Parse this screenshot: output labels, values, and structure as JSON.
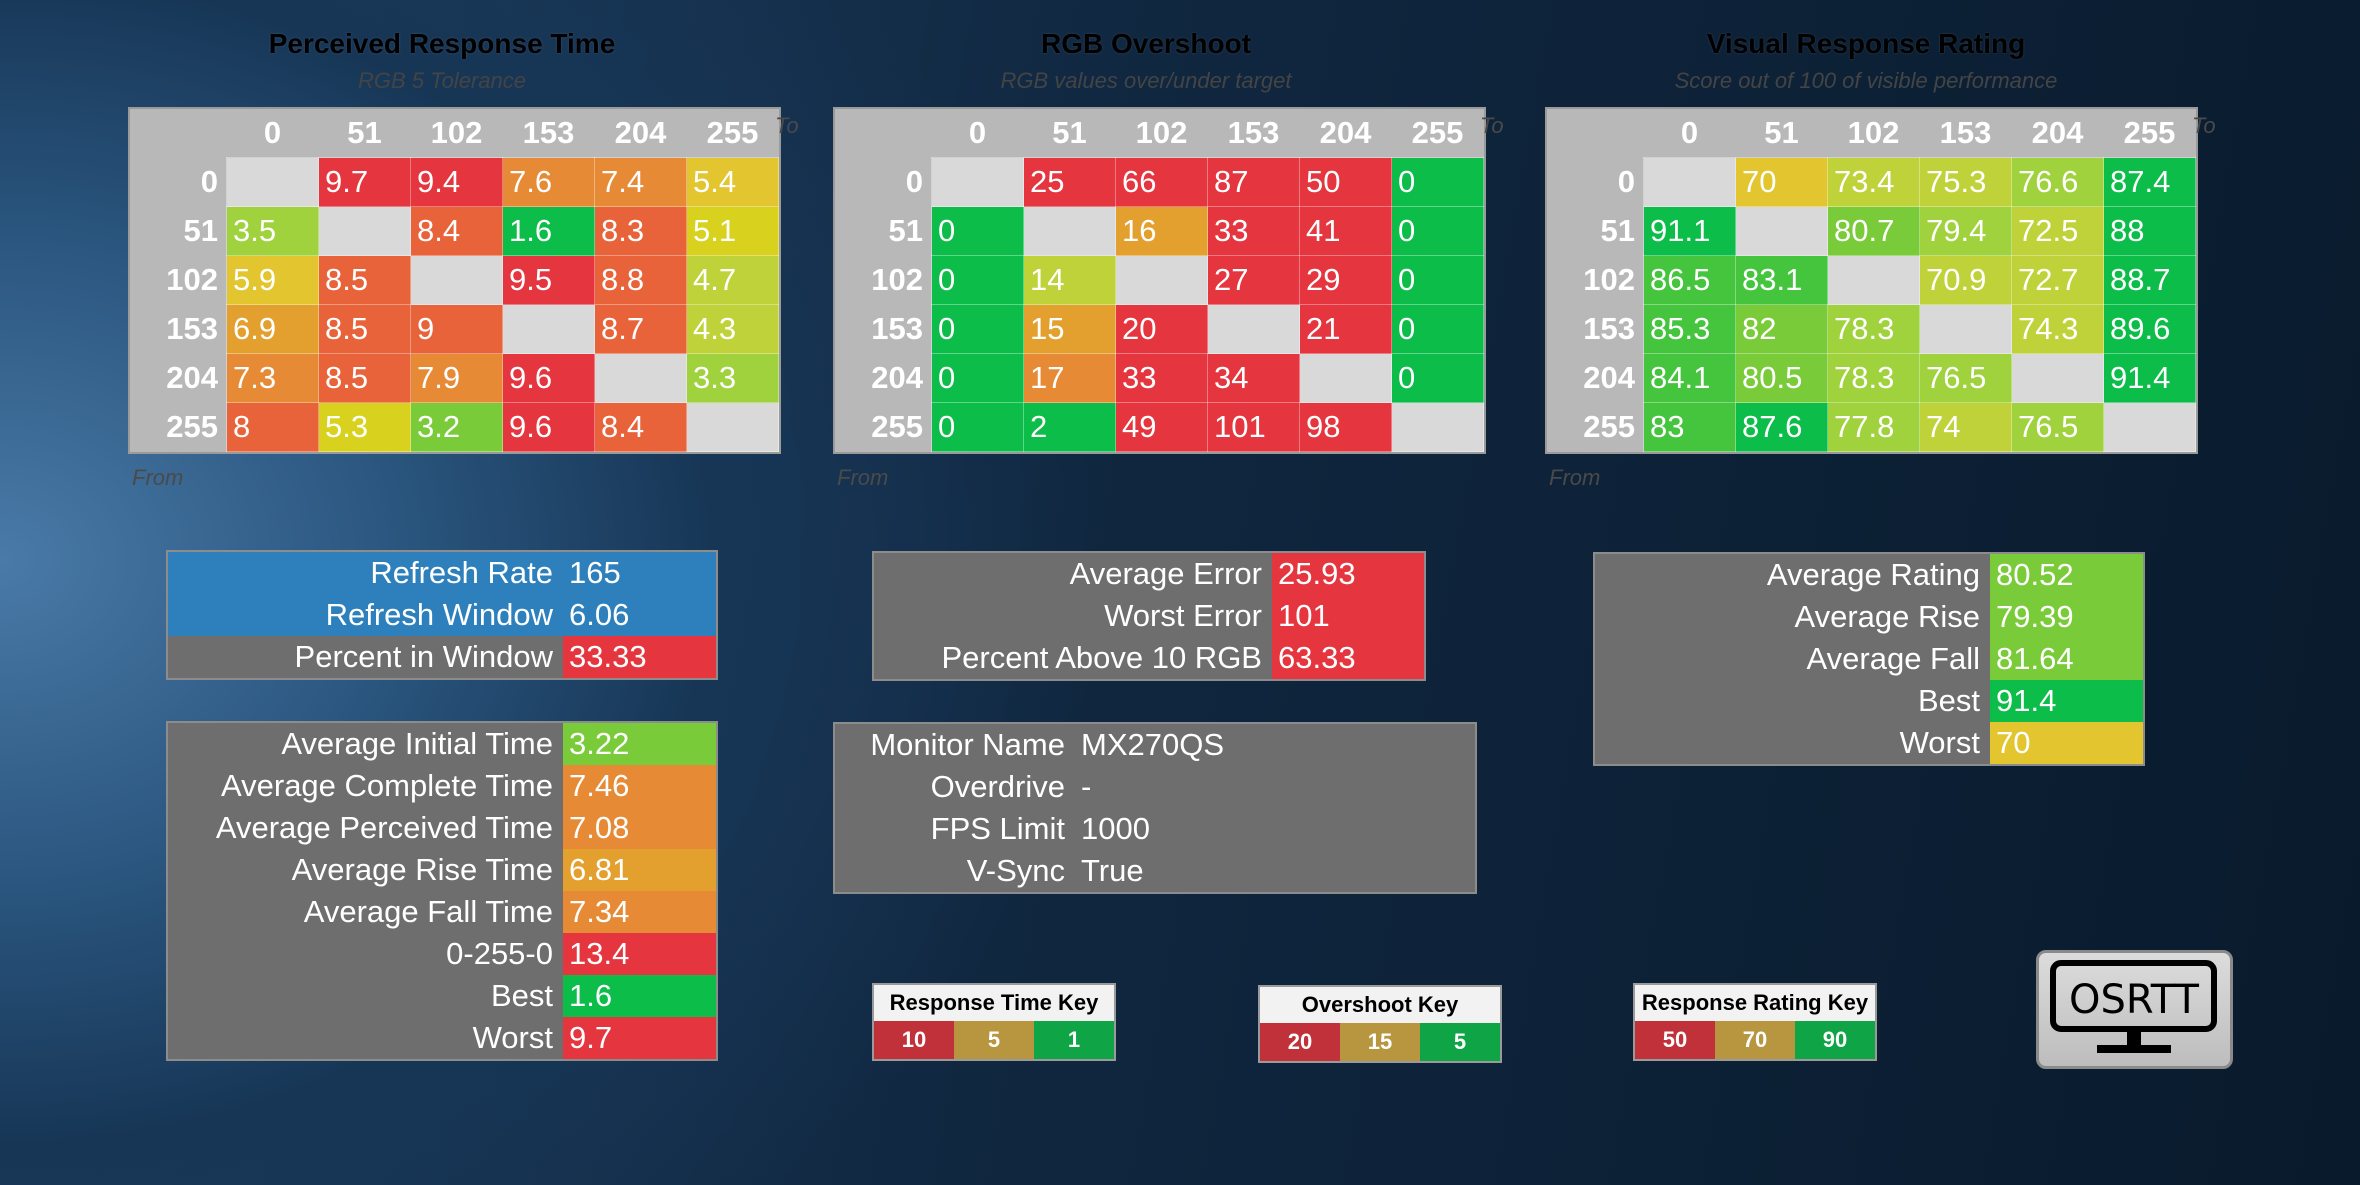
{
  "colors": {
    "red": "#e5353e",
    "orange_red": "#e8633a",
    "orange": "#e78a35",
    "amber": "#e3a02e",
    "yellow": "#e2c52f",
    "yellow2": "#d8d21e",
    "yellow_green": "#bfd23a",
    "light_green": "#9fd23c",
    "green": "#7acb3a",
    "green2": "#45c43e",
    "bright_green": "#0cbd4a",
    "diag": "#d9d9d9",
    "blue": "#2e80bd",
    "grey": "#6e6e6e"
  },
  "prt": {
    "title": "Perceived Response Time",
    "subtitle": "RGB 5 Tolerance",
    "to_label": "To",
    "from_label": "From",
    "headers": [
      "0",
      "51",
      "102",
      "153",
      "204",
      "255"
    ],
    "rows": [
      {
        "label": "0",
        "cells": [
          {
            "v": "",
            "c": "diag"
          },
          {
            "v": "9.7",
            "c": "red"
          },
          {
            "v": "9.4",
            "c": "red"
          },
          {
            "v": "7.6",
            "c": "orange"
          },
          {
            "v": "7.4",
            "c": "orange"
          },
          {
            "v": "5.4",
            "c": "yellow"
          }
        ]
      },
      {
        "label": "51",
        "cells": [
          {
            "v": "3.5",
            "c": "light_green"
          },
          {
            "v": "",
            "c": "diag"
          },
          {
            "v": "8.4",
            "c": "orange_red"
          },
          {
            "v": "1.6",
            "c": "bright_green"
          },
          {
            "v": "8.3",
            "c": "orange_red"
          },
          {
            "v": "5.1",
            "c": "yellow2"
          }
        ]
      },
      {
        "label": "102",
        "cells": [
          {
            "v": "5.9",
            "c": "yellow"
          },
          {
            "v": "8.5",
            "c": "orange_red"
          },
          {
            "v": "",
            "c": "diag"
          },
          {
            "v": "9.5",
            "c": "red"
          },
          {
            "v": "8.8",
            "c": "orange_red"
          },
          {
            "v": "4.7",
            "c": "yellow_green"
          }
        ]
      },
      {
        "label": "153",
        "cells": [
          {
            "v": "6.9",
            "c": "amber"
          },
          {
            "v": "8.5",
            "c": "orange_red"
          },
          {
            "v": "9",
            "c": "orange_red"
          },
          {
            "v": "",
            "c": "diag"
          },
          {
            "v": "8.7",
            "c": "orange_red"
          },
          {
            "v": "4.3",
            "c": "yellow_green"
          }
        ]
      },
      {
        "label": "204",
        "cells": [
          {
            "v": "7.3",
            "c": "orange"
          },
          {
            "v": "8.5",
            "c": "orange_red"
          },
          {
            "v": "7.9",
            "c": "orange"
          },
          {
            "v": "9.6",
            "c": "red"
          },
          {
            "v": "",
            "c": "diag"
          },
          {
            "v": "3.3",
            "c": "light_green"
          }
        ]
      },
      {
        "label": "255",
        "cells": [
          {
            "v": "8",
            "c": "orange_red"
          },
          {
            "v": "5.3",
            "c": "yellow2"
          },
          {
            "v": "3.2",
            "c": "green"
          },
          {
            "v": "9.6",
            "c": "red"
          },
          {
            "v": "8.4",
            "c": "orange_red"
          },
          {
            "v": "",
            "c": "diag"
          }
        ]
      }
    ]
  },
  "overshoot": {
    "title": "RGB Overshoot",
    "subtitle": "RGB values over/under target",
    "to_label": "To",
    "from_label": "From",
    "headers": [
      "0",
      "51",
      "102",
      "153",
      "204",
      "255"
    ],
    "rows": [
      {
        "label": "0",
        "cells": [
          {
            "v": "",
            "c": "diag"
          },
          {
            "v": "25",
            "c": "red"
          },
          {
            "v": "66",
            "c": "red"
          },
          {
            "v": "87",
            "c": "red"
          },
          {
            "v": "50",
            "c": "red"
          },
          {
            "v": "0",
            "c": "bright_green"
          }
        ]
      },
      {
        "label": "51",
        "cells": [
          {
            "v": "0",
            "c": "bright_green"
          },
          {
            "v": "",
            "c": "diag"
          },
          {
            "v": "16",
            "c": "amber"
          },
          {
            "v": "33",
            "c": "red"
          },
          {
            "v": "41",
            "c": "red"
          },
          {
            "v": "0",
            "c": "bright_green"
          }
        ]
      },
      {
        "label": "102",
        "cells": [
          {
            "v": "0",
            "c": "bright_green"
          },
          {
            "v": "14",
            "c": "yellow_green"
          },
          {
            "v": "",
            "c": "diag"
          },
          {
            "v": "27",
            "c": "red"
          },
          {
            "v": "29",
            "c": "red"
          },
          {
            "v": "0",
            "c": "bright_green"
          }
        ]
      },
      {
        "label": "153",
        "cells": [
          {
            "v": "0",
            "c": "bright_green"
          },
          {
            "v": "15",
            "c": "amber"
          },
          {
            "v": "20",
            "c": "red"
          },
          {
            "v": "",
            "c": "diag"
          },
          {
            "v": "21",
            "c": "red"
          },
          {
            "v": "0",
            "c": "bright_green"
          }
        ]
      },
      {
        "label": "204",
        "cells": [
          {
            "v": "0",
            "c": "bright_green"
          },
          {
            "v": "17",
            "c": "orange"
          },
          {
            "v": "33",
            "c": "red"
          },
          {
            "v": "34",
            "c": "red"
          },
          {
            "v": "",
            "c": "diag"
          },
          {
            "v": "0",
            "c": "bright_green"
          }
        ]
      },
      {
        "label": "255",
        "cells": [
          {
            "v": "0",
            "c": "bright_green"
          },
          {
            "v": "2",
            "c": "bright_green"
          },
          {
            "v": "49",
            "c": "red"
          },
          {
            "v": "101",
            "c": "red"
          },
          {
            "v": "98",
            "c": "red"
          },
          {
            "v": "",
            "c": "diag"
          }
        ]
      }
    ]
  },
  "rating": {
    "title": "Visual Response Rating",
    "subtitle": "Score out of 100 of visible performance",
    "to_label": "To",
    "from_label": "From",
    "headers": [
      "0",
      "51",
      "102",
      "153",
      "204",
      "255"
    ],
    "rows": [
      {
        "label": "0",
        "cells": [
          {
            "v": "",
            "c": "diag"
          },
          {
            "v": "70",
            "c": "yellow"
          },
          {
            "v": "73.4",
            "c": "yellow_green"
          },
          {
            "v": "75.3",
            "c": "yellow_green"
          },
          {
            "v": "76.6",
            "c": "light_green"
          },
          {
            "v": "87.4",
            "c": "bright_green"
          }
        ]
      },
      {
        "label": "51",
        "cells": [
          {
            "v": "91.1",
            "c": "bright_green"
          },
          {
            "v": "",
            "c": "diag"
          },
          {
            "v": "80.7",
            "c": "green"
          },
          {
            "v": "79.4",
            "c": "light_green"
          },
          {
            "v": "72.5",
            "c": "yellow_green"
          },
          {
            "v": "88",
            "c": "bright_green"
          }
        ]
      },
      {
        "label": "102",
        "cells": [
          {
            "v": "86.5",
            "c": "green2"
          },
          {
            "v": "83.1",
            "c": "green2"
          },
          {
            "v": "",
            "c": "diag"
          },
          {
            "v": "70.9",
            "c": "yellow_green"
          },
          {
            "v": "72.7",
            "c": "yellow_green"
          },
          {
            "v": "88.7",
            "c": "bright_green"
          }
        ]
      },
      {
        "label": "153",
        "cells": [
          {
            "v": "85.3",
            "c": "green2"
          },
          {
            "v": "82",
            "c": "green"
          },
          {
            "v": "78.3",
            "c": "light_green"
          },
          {
            "v": "",
            "c": "diag"
          },
          {
            "v": "74.3",
            "c": "yellow_green"
          },
          {
            "v": "89.6",
            "c": "bright_green"
          }
        ]
      },
      {
        "label": "204",
        "cells": [
          {
            "v": "84.1",
            "c": "green2"
          },
          {
            "v": "80.5",
            "c": "green"
          },
          {
            "v": "78.3",
            "c": "light_green"
          },
          {
            "v": "76.5",
            "c": "light_green"
          },
          {
            "v": "",
            "c": "diag"
          },
          {
            "v": "91.4",
            "c": "bright_green"
          }
        ]
      },
      {
        "label": "255",
        "cells": [
          {
            "v": "83",
            "c": "green2"
          },
          {
            "v": "87.6",
            "c": "bright_green"
          },
          {
            "v": "77.8",
            "c": "light_green"
          },
          {
            "v": "74",
            "c": "yellow_green"
          },
          {
            "v": "76.5",
            "c": "light_green"
          },
          {
            "v": "",
            "c": "diag"
          }
        ]
      }
    ]
  },
  "refresh_panel": [
    {
      "label": "Refresh Rate",
      "value": "165",
      "lc": "blue",
      "vc": "blue"
    },
    {
      "label": "Refresh Window",
      "value": "6.06",
      "lc": "blue",
      "vc": "blue"
    },
    {
      "label": "Percent in Window",
      "value": "33.33",
      "lc": "grey",
      "vc": "red"
    }
  ],
  "times_panel": [
    {
      "label": "Average Initial Time",
      "value": "3.22",
      "vc": "green"
    },
    {
      "label": "Average Complete Time",
      "value": "7.46",
      "vc": "orange"
    },
    {
      "label": "Average Perceived Time",
      "value": "7.08",
      "vc": "orange"
    },
    {
      "label": "Average Rise Time",
      "value": "6.81",
      "vc": "amber"
    },
    {
      "label": "Average Fall Time",
      "value": "7.34",
      "vc": "orange"
    },
    {
      "label": "0-255-0",
      "value": "13.4",
      "vc": "red"
    },
    {
      "label": "Best",
      "value": "1.6",
      "vc": "bright_green"
    },
    {
      "label": "Worst",
      "value": "9.7",
      "vc": "red"
    }
  ],
  "error_panel": [
    {
      "label": "Average Error",
      "value": "25.93",
      "vc": "red"
    },
    {
      "label": "Worst Error",
      "value": "101",
      "vc": "red"
    },
    {
      "label": "Percent Above 10 RGB",
      "value": "63.33",
      "vc": "red"
    }
  ],
  "monitor_panel": [
    {
      "label": "Monitor Name",
      "value": "MX270QS"
    },
    {
      "label": "Overdrive",
      "value": "-"
    },
    {
      "label": "FPS Limit",
      "value": "1000"
    },
    {
      "label": "V-Sync",
      "value": "True"
    }
  ],
  "rating_panel": [
    {
      "label": "Average Rating",
      "value": "80.52",
      "vc": "green"
    },
    {
      "label": "Average Rise",
      "value": "79.39",
      "vc": "green"
    },
    {
      "label": "Average Fall",
      "value": "81.64",
      "vc": "green"
    },
    {
      "label": "Best",
      "value": "91.4",
      "vc": "bright_green"
    },
    {
      "label": "Worst",
      "value": "70",
      "vc": "yellow"
    }
  ],
  "keys": [
    {
      "title": "Response Time Key",
      "items": [
        {
          "v": "10",
          "c": "#c0313a"
        },
        {
          "v": "5",
          "c": "#b89640"
        },
        {
          "v": "1",
          "c": "#0fa446"
        }
      ]
    },
    {
      "title": "Overshoot Key",
      "items": [
        {
          "v": "20",
          "c": "#c0313a"
        },
        {
          "v": "15",
          "c": "#b89640"
        },
        {
          "v": "5",
          "c": "#0fa446"
        }
      ]
    },
    {
      "title": "Response Rating Key",
      "items": [
        {
          "v": "50",
          "c": "#c0313a"
        },
        {
          "v": "70",
          "c": "#b89640"
        },
        {
          "v": "90",
          "c": "#0fa446"
        }
      ]
    }
  ],
  "logo": {
    "text": "OSRTT"
  }
}
